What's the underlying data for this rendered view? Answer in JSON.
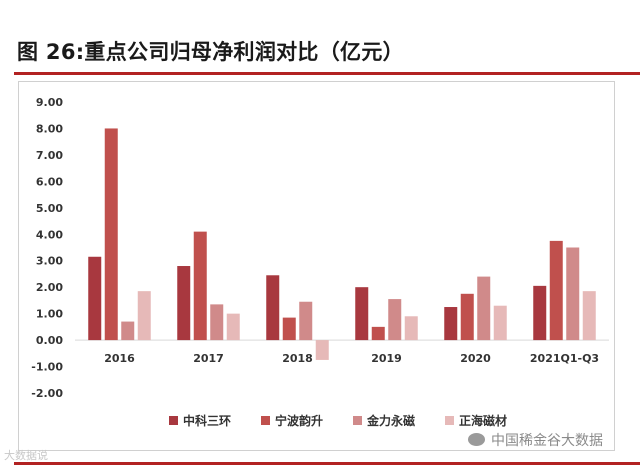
{
  "header": {
    "title": "图  26:重点公司归母净利润对比（亿元）"
  },
  "watermarks": {
    "left": "大数据说",
    "right": "中国稀金谷大数据"
  },
  "chart_data": {
    "type": "bar",
    "title": "",
    "xlabel": "",
    "ylabel": "",
    "categories": [
      "2016",
      "2017",
      "2018",
      "2019",
      "2020",
      "2021Q1-Q3"
    ],
    "ylim": [
      -2,
      9
    ],
    "yticks": [
      "9.00",
      "8.00",
      "7.00",
      "6.00",
      "5.00",
      "4.00",
      "3.00",
      "2.00",
      "1.00",
      "0.00",
      "-1.00",
      "-2.00"
    ],
    "grid": false,
    "legend_position": "bottom",
    "series": [
      {
        "name": "中科三环",
        "color": "#a8383f",
        "values": [
          3.15,
          2.8,
          2.45,
          2.0,
          1.25,
          2.05
        ]
      },
      {
        "name": "宁波韵升",
        "color": "#c0504d",
        "values": [
          8.0,
          4.1,
          0.85,
          0.5,
          1.75,
          3.75
        ]
      },
      {
        "name": "金力永磁",
        "color": "#d08a8a",
        "values": [
          0.7,
          1.35,
          1.45,
          1.55,
          2.4,
          3.5
        ]
      },
      {
        "name": "正海磁材",
        "color": "#e6b9b8",
        "values": [
          1.85,
          1.0,
          -0.75,
          0.9,
          1.3,
          1.85
        ]
      }
    ]
  }
}
